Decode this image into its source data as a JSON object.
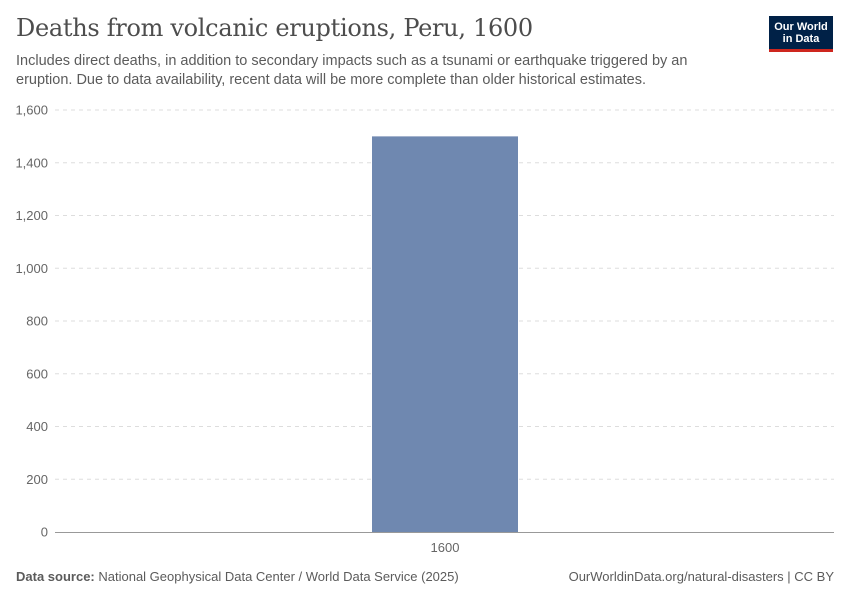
{
  "header": {
    "title": "Deaths from volcanic eruptions, Peru, 1600",
    "subtitle": "Includes direct deaths, in addition to secondary impacts such as a tsunami or earthquake triggered by an eruption. Due to data availability, recent data will be more complete than older historical estimates.",
    "logo_line1": "Our World",
    "logo_line2": "in Data"
  },
  "footer": {
    "source_label": "Data source:",
    "source_text": "National Geophysical Data Center / World Data Service (2025)",
    "link_text": "OurWorldinData.org/natural-disasters | CC BY"
  },
  "colors": {
    "bar": "#6f88b0",
    "grid": "#dddddd",
    "axis": "#999999"
  },
  "chart_data": {
    "type": "bar",
    "title": "Deaths from volcanic eruptions, Peru, 1600",
    "xlabel": "",
    "ylabel": "",
    "categories": [
      "1600"
    ],
    "values": [
      1500
    ],
    "ylim": [
      0,
      1600
    ],
    "yticks": [
      0,
      200,
      400,
      600,
      800,
      1000,
      1200,
      1400,
      1600
    ],
    "ytick_labels": [
      "0",
      "200",
      "400",
      "600",
      "800",
      "1,000",
      "1,200",
      "1,400",
      "1,600"
    ],
    "grid": true
  }
}
